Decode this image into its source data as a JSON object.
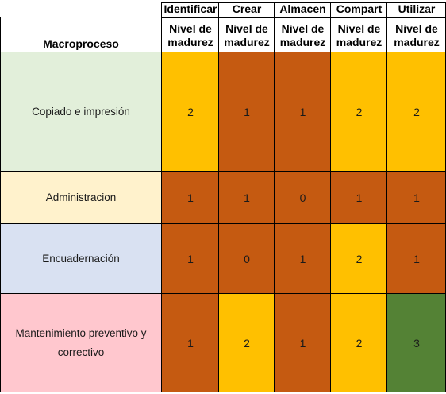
{
  "header": {
    "macroproceso": "Macroproceso",
    "stages": [
      "Identificar",
      "Crear",
      "Almacen",
      "Compart",
      "Utilizar"
    ],
    "sub_label_1": "Nivel de",
    "sub_label_2": "madurez"
  },
  "rows": [
    {
      "name": "Copiado e impresión",
      "values": [
        "2",
        "1",
        "1",
        "2",
        "2"
      ],
      "bg": "#e2efda"
    },
    {
      "name": "Administracion",
      "values": [
        "1",
        "1",
        "0",
        "1",
        "1"
      ],
      "bg": "#fff2cc"
    },
    {
      "name": "Encuadernación",
      "values": [
        "1",
        "0",
        "1",
        "2",
        "1"
      ],
      "bg": "#d9e1f2"
    },
    {
      "name": "Mantenimiento preventivo y correctivo",
      "values": [
        "1",
        "2",
        "1",
        "2",
        "3"
      ],
      "bg": "#ffc7ce"
    }
  ],
  "colors": {
    "level_0": "#c55a11",
    "level_1": "#c55a11",
    "level_2": "#ffc000",
    "level_3": "#548235"
  }
}
